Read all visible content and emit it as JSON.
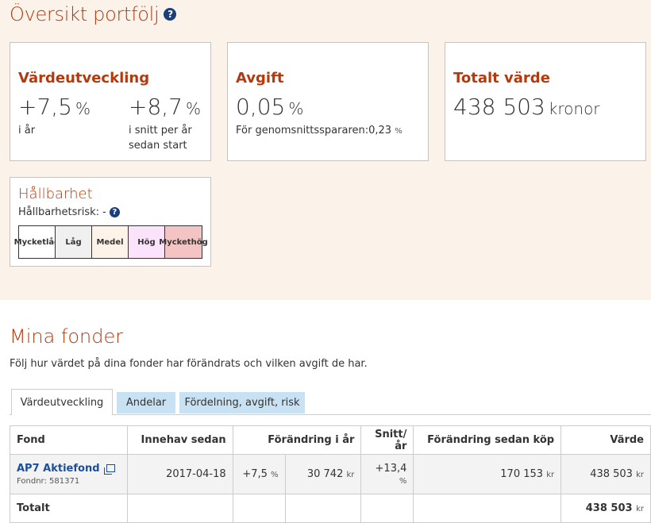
{
  "overview": {
    "title": "Översikt portfölj",
    "help_icon": "?",
    "value_card": {
      "title": "Värdeutveckling",
      "year_value": "+7,5",
      "year_unit": "%",
      "year_label": "i år",
      "avg_value": "+8,7",
      "avg_unit": "%",
      "avg_label_1": "i snitt per år",
      "avg_label_2": "sedan start"
    },
    "fee_card": {
      "title": "Avgift",
      "value": "0,05",
      "unit": "%",
      "note": "För genomsnittsspararen:0,23",
      "note_unit": "%"
    },
    "total_card": {
      "title": "Totalt värde",
      "value": "438 503",
      "unit": "kronor"
    },
    "sustainability": {
      "title": "Hållbarhet",
      "risk_label": "Hållbarhetsrisk: -",
      "levels": [
        {
          "label_1": "Mycket",
          "label_2": "låg",
          "color": "#ffffff"
        },
        {
          "label_1": "Låg",
          "label_2": "",
          "color": "#f0f0f0"
        },
        {
          "label_1": "Medel",
          "label_2": "",
          "color": "#fdf3e8"
        },
        {
          "label_1": "Hög",
          "label_2": "",
          "color": "#fbe4fb"
        },
        {
          "label_1": "Mycket",
          "label_2": "hög",
          "color": "#f4c3c3"
        }
      ]
    }
  },
  "funds": {
    "title": "Mina fonder",
    "description": "Följ hur värdet på dina fonder har förändrats och vilken avgift de har.",
    "tabs": [
      "Värdeutveckling",
      "Andelar",
      "Fördelning, avgift, risk"
    ],
    "columns": [
      "Fond",
      "Innehav sedan",
      "Förändring i år",
      "Snitt/år",
      "Förändring sedan köp",
      "Värde"
    ],
    "rows": [
      {
        "name": "AP7 Aktiefond",
        "fund_no": "Fondnr: 581371",
        "since": "2017-04-18",
        "change_pct": "+7,5",
        "change_kr": "30 742",
        "avg": "+13,4",
        "since_buy": "170 153",
        "value": "438 503"
      }
    ],
    "total_label": "Totalt",
    "total_value": "438 503",
    "pct_unit": "%",
    "kr_unit": "kr"
  }
}
